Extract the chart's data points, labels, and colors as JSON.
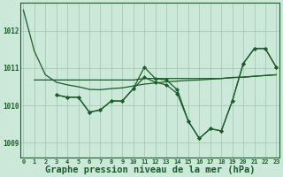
{
  "background_color": "#cce8d8",
  "grid_color": "#a8c8b8",
  "line_color": "#1a5c2a",
  "marker_color": "#1a5c2a",
  "xlabel": "Graphe pression niveau de la mer (hPa)",
  "xlabel_fontsize": 7.5,
  "ylim": [
    1008.6,
    1012.75
  ],
  "xlim": [
    -0.3,
    23.3
  ],
  "yticks": [
    1009,
    1010,
    1011,
    1012
  ],
  "xticks": [
    0,
    1,
    2,
    3,
    4,
    5,
    6,
    7,
    8,
    9,
    10,
    11,
    12,
    13,
    14,
    15,
    16,
    17,
    18,
    19,
    20,
    21,
    22,
    23
  ],
  "series1_x": [
    0,
    1,
    2,
    3,
    4,
    5,
    6,
    7,
    8,
    9,
    10,
    11,
    12,
    13,
    14,
    15,
    16,
    17,
    18,
    19,
    20,
    21,
    22,
    23
  ],
  "series1_y": [
    1012.55,
    1011.45,
    1010.82,
    1010.62,
    1010.55,
    1010.5,
    1010.43,
    1010.42,
    1010.45,
    1010.47,
    1010.52,
    1010.57,
    1010.6,
    1010.63,
    1010.65,
    1010.67,
    1010.68,
    1010.7,
    1010.72,
    1010.74,
    1010.76,
    1010.78,
    1010.8,
    1010.82
  ],
  "series2_x": [
    1,
    2,
    3,
    4,
    5,
    6,
    7,
    8,
    9,
    10,
    11,
    12,
    13,
    14,
    15,
    16,
    17,
    18,
    19,
    20,
    21,
    22,
    23
  ],
  "series2_y": [
    1010.68,
    1010.68,
    1010.68,
    1010.68,
    1010.68,
    1010.68,
    1010.68,
    1010.68,
    1010.68,
    1010.68,
    1010.72,
    1010.72,
    1010.72,
    1010.72,
    1010.72,
    1010.72,
    1010.72,
    1010.72,
    1010.75,
    1010.75,
    1010.78,
    1010.8,
    1010.82
  ],
  "series3_x": [
    3,
    4,
    5,
    6,
    7,
    8,
    9,
    10,
    11,
    12,
    13,
    14,
    15,
    16,
    17,
    18,
    19,
    20,
    21,
    22,
    23
  ],
  "series3_y": [
    1010.28,
    1010.22,
    1010.22,
    1009.82,
    1009.88,
    1010.12,
    1010.12,
    1010.45,
    1011.02,
    1010.72,
    1010.68,
    1010.42,
    1009.58,
    1009.12,
    1009.38,
    1009.32,
    1010.12,
    1011.12,
    1011.52,
    1011.52,
    1011.02
  ],
  "series4_x": [
    3,
    4,
    5,
    6,
    7,
    8,
    9,
    10,
    11,
    12,
    13,
    14,
    15,
    16,
    17,
    18,
    19,
    20,
    21,
    22,
    23
  ],
  "series4_y": [
    1010.28,
    1010.22,
    1010.22,
    1009.82,
    1009.88,
    1010.12,
    1010.12,
    1010.45,
    1010.75,
    1010.62,
    1010.55,
    1010.32,
    1009.58,
    1009.12,
    1009.38,
    1009.32,
    1010.12,
    1011.12,
    1011.52,
    1011.52,
    1011.02
  ]
}
